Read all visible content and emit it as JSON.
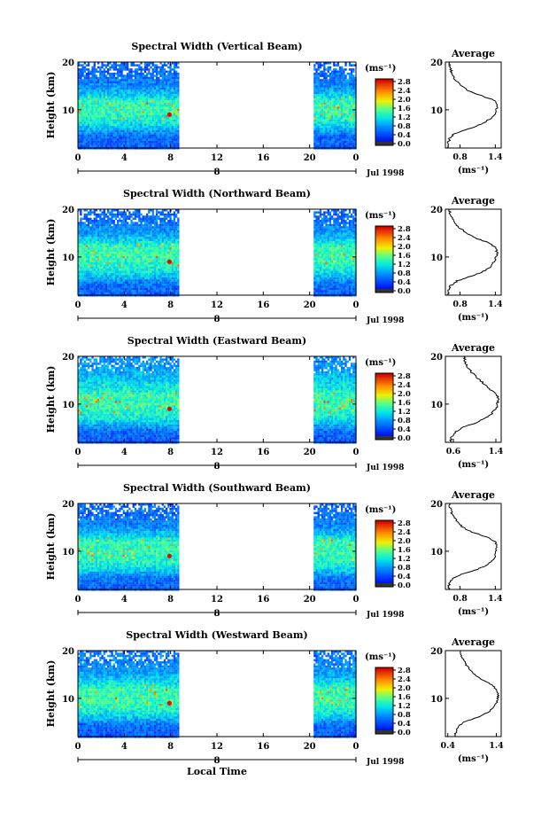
{
  "figure": {
    "x_axis_title": "Local Time",
    "colorbar_unit": "(ms⁻¹)",
    "avg_panel_title": "Average",
    "avg_unit": "(ms⁻¹)"
  },
  "chart_data": [
    {
      "type": "heatmap",
      "title": "Spectral Width (Vertical Beam)",
      "ylabel": "Height (km)",
      "xlabel": "",
      "x_ticks": [
        "0",
        "4",
        "8",
        "12",
        "16",
        "20",
        "0"
      ],
      "xlim": [
        0,
        24
      ],
      "y_ticks": [
        "10",
        "20"
      ],
      "ylim": [
        2,
        20
      ],
      "date_marker": "8",
      "date_label": "Jul 1998",
      "data_gap": [
        8.8,
        20.3
      ],
      "colorbar": {
        "ticks": [
          "2.8",
          "2.4",
          "2.0",
          "1.6",
          "1.2",
          "0.8",
          "0.4",
          "0.0"
        ],
        "range": [
          0,
          3.0
        ]
      },
      "average_profile": {
        "title": "Average",
        "x_ticks": [
          "0.8",
          "1.4"
        ],
        "xlim": [
          0.55,
          1.5
        ],
        "heights": [
          2,
          3,
          4,
          5,
          6,
          7,
          8,
          9,
          10,
          11,
          12,
          13,
          14,
          15,
          16,
          17,
          18,
          19,
          20
        ],
        "values": [
          0.58,
          0.6,
          0.62,
          0.7,
          0.95,
          1.15,
          1.3,
          1.38,
          1.42,
          1.44,
          1.38,
          1.15,
          0.95,
          0.82,
          0.74,
          0.68,
          0.65,
          0.63,
          0.62
        ]
      }
    },
    {
      "type": "heatmap",
      "title": "Spectral Width (Northward Beam)",
      "ylabel": "Height (km)",
      "xlabel": "",
      "x_ticks": [
        "0",
        "4",
        "8",
        "12",
        "16",
        "20",
        "0"
      ],
      "xlim": [
        0,
        24
      ],
      "y_ticks": [
        "10",
        "20"
      ],
      "ylim": [
        2,
        20
      ],
      "date_marker": "8",
      "date_label": "Jul 1998",
      "data_gap": [
        8.8,
        20.3
      ],
      "colorbar": {
        "ticks": [
          "2.8",
          "2.4",
          "2.0",
          "1.6",
          "1.2",
          "0.8",
          "0.4",
          "0.0"
        ],
        "range": [
          0,
          3.0
        ]
      },
      "average_profile": {
        "title": "Average",
        "x_ticks": [
          "0.8",
          "1.4"
        ],
        "xlim": [
          0.55,
          1.5
        ],
        "heights": [
          2,
          3,
          4,
          5,
          6,
          7,
          8,
          9,
          10,
          11,
          12,
          13,
          14,
          15,
          16,
          17,
          18,
          19,
          20
        ],
        "values": [
          0.6,
          0.6,
          0.64,
          0.75,
          1.0,
          1.2,
          1.32,
          1.38,
          1.42,
          1.43,
          1.4,
          1.28,
          1.05,
          0.9,
          0.8,
          0.72,
          0.66,
          0.63,
          0.62
        ]
      }
    },
    {
      "type": "heatmap",
      "title": "Spectral Width (Eastward Beam)",
      "ylabel": "Height (km)",
      "xlabel": "",
      "x_ticks": [
        "0",
        "4",
        "8",
        "12",
        "16",
        "20",
        "0"
      ],
      "xlim": [
        0,
        24
      ],
      "y_ticks": [
        "10",
        "20"
      ],
      "ylim": [
        2,
        20
      ],
      "date_marker": "8",
      "date_label": "Jul 1998",
      "data_gap": [
        8.8,
        20.3
      ],
      "colorbar": {
        "ticks": [
          "2.8",
          "2.4",
          "2.0",
          "1.6",
          "1.2",
          "0.8",
          "0.4",
          "0.0"
        ],
        "range": [
          0,
          3.0
        ]
      },
      "average_profile": {
        "title": "Average",
        "x_ticks": [
          "0.6",
          "1.4"
        ],
        "xlim": [
          0.45,
          1.5
        ],
        "heights": [
          2,
          3,
          4,
          5,
          6,
          7,
          8,
          9,
          10,
          11,
          12,
          13,
          14,
          15,
          16,
          17,
          18,
          19,
          20
        ],
        "values": [
          0.55,
          0.56,
          0.62,
          0.75,
          1.0,
          1.2,
          1.32,
          1.4,
          1.43,
          1.44,
          1.42,
          1.3,
          1.2,
          1.1,
          1.0,
          0.92,
          0.85,
          0.82,
          0.8
        ]
      }
    },
    {
      "type": "heatmap",
      "title": "Spectral Width (Southward Beam)",
      "ylabel": "Height (km)",
      "xlabel": "",
      "x_ticks": [
        "0",
        "4",
        "8",
        "12",
        "16",
        "20",
        "0"
      ],
      "xlim": [
        0,
        24
      ],
      "y_ticks": [
        "10",
        "20"
      ],
      "ylim": [
        2,
        20
      ],
      "date_marker": "8",
      "date_label": "Jul 1998",
      "data_gap": [
        8.8,
        20.3
      ],
      "colorbar": {
        "ticks": [
          "2.8",
          "2.4",
          "2.0",
          "1.6",
          "1.2",
          "0.8",
          "0.4",
          "0.0"
        ],
        "range": [
          0,
          3.0
        ]
      },
      "average_profile": {
        "title": "Average",
        "x_ticks": [
          "0.8",
          "1.4"
        ],
        "xlim": [
          0.55,
          1.5
        ],
        "heights": [
          2,
          3,
          4,
          5,
          6,
          7,
          8,
          9,
          10,
          11,
          12,
          13,
          14,
          15,
          16,
          17,
          18,
          19,
          20
        ],
        "values": [
          0.6,
          0.61,
          0.65,
          0.78,
          1.05,
          1.25,
          1.35,
          1.4,
          1.42,
          1.43,
          1.4,
          1.25,
          1.0,
          0.85,
          0.76,
          0.7,
          0.66,
          0.63,
          0.62
        ]
      }
    },
    {
      "type": "heatmap",
      "title": "Spectral Width (Westward Beam)",
      "ylabel": "Height (km)",
      "xlabel": "Local Time",
      "x_ticks": [
        "0",
        "4",
        "8",
        "12",
        "16",
        "20",
        "0"
      ],
      "xlim": [
        0,
        24
      ],
      "y_ticks": [
        "10",
        "20"
      ],
      "ylim": [
        2,
        20
      ],
      "date_marker": "8",
      "date_label": "Jul 1998",
      "data_gap": [
        8.8,
        20.3
      ],
      "colorbar": {
        "ticks": [
          "2.8",
          "2.4",
          "2.0",
          "1.6",
          "1.2",
          "0.8",
          "0.4",
          "0.0"
        ],
        "range": [
          0,
          3.0
        ]
      },
      "average_profile": {
        "title": "Average",
        "x_ticks": [
          "0.4",
          "1.4"
        ],
        "xlim": [
          0.35,
          1.5
        ],
        "heights": [
          2,
          3,
          4,
          5,
          6,
          7,
          8,
          9,
          10,
          11,
          12,
          13,
          14,
          15,
          16,
          17,
          18,
          19,
          20
        ],
        "values": [
          0.55,
          0.56,
          0.6,
          0.72,
          1.0,
          1.22,
          1.34,
          1.4,
          1.43,
          1.44,
          1.4,
          1.28,
          1.1,
          0.95,
          0.85,
          0.78,
          0.72,
          0.68,
          0.66
        ]
      }
    }
  ]
}
